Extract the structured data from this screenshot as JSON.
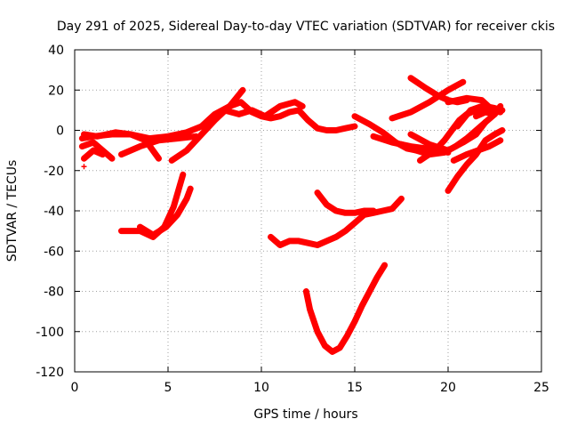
{
  "chart_data": {
    "type": "line",
    "title": "Day 291 of 2025, Sidereal Day-to-day VTEC variation (SDTVAR) for receiver ckis",
    "xlabel": "GPS time / hours",
    "ylabel": "SDTVAR / TECUs",
    "xlim": [
      0,
      25
    ],
    "ylim": [
      -120,
      40
    ],
    "xticks": [
      0,
      5,
      10,
      15,
      20,
      25
    ],
    "yticks": [
      -120,
      -100,
      -80,
      -60,
      -40,
      -20,
      0,
      20,
      40
    ],
    "grid": true,
    "legend": "none",
    "color": "#ff0000",
    "series": [
      {
        "x": [
          0.4,
          1.0,
          2.0,
          3.0,
          4.0,
          5.0,
          6.0,
          6.8,
          7.5,
          8.3,
          9.0
        ],
        "y": [
          -4,
          -3,
          -2,
          -2,
          -4,
          -3,
          -1,
          2,
          8,
          12,
          20
        ]
      },
      {
        "x": [
          0.5,
          1.2,
          2.2,
          3.0,
          3.8,
          4.5
        ],
        "y": [
          -2,
          -3,
          -1,
          -2,
          -5,
          -14
        ]
      },
      {
        "x": [
          0.4,
          1.0,
          1.5,
          2.0
        ],
        "y": [
          -8,
          -6,
          -10,
          -14
        ]
      },
      {
        "x": [
          0.5,
          1.0,
          1.5
        ],
        "y": [
          -14,
          -10,
          -12
        ]
      },
      {
        "x": [
          2.5,
          3.5,
          4.5,
          5.5,
          6.5
        ],
        "y": [
          -12,
          -8,
          -5,
          -4,
          -3
        ]
      },
      {
        "x": [
          5.2,
          6.0,
          6.8,
          7.5,
          8.3,
          8.9,
          9.5,
          10.0,
          10.5,
          11.0,
          11.5,
          12.0,
          12.5,
          13.0,
          13.5,
          14.0,
          14.5,
          15.0
        ],
        "y": [
          -15,
          -10,
          -2,
          5,
          12,
          14,
          9,
          7,
          6,
          7,
          9,
          10,
          5,
          1,
          0,
          0,
          1,
          2
        ]
      },
      {
        "x": [
          8.0,
          8.8,
          9.5,
          10.2,
          11.0,
          11.8,
          12.2
        ],
        "y": [
          10,
          8,
          10,
          7,
          12,
          14,
          12
        ]
      },
      {
        "x": [
          2.5,
          3.5,
          4.2,
          4.8,
          5.3,
          5.8
        ],
        "y": [
          -50,
          -50,
          -53,
          -48,
          -38,
          -22
        ]
      },
      {
        "x": [
          3.5,
          4.2,
          4.9,
          5.5,
          6.0,
          6.2
        ],
        "y": [
          -48,
          -52,
          -48,
          -42,
          -34,
          -29
        ]
      },
      {
        "x": [
          10.5,
          11.0,
          11.5,
          12.0,
          12.5,
          13.0,
          13.5,
          14.0,
          14.5,
          15.0,
          15.5,
          16.0,
          16.5,
          17.0,
          17.5
        ],
        "y": [
          -53,
          -57,
          -55,
          -55,
          -56,
          -57,
          -55,
          -53,
          -50,
          -46,
          -42,
          -41,
          -40,
          -39,
          -34
        ]
      },
      {
        "x": [
          13.0,
          13.5,
          14.0,
          14.5,
          15.0,
          15.5,
          16.0
        ],
        "y": [
          -31,
          -37,
          -40,
          -41,
          -41,
          -40,
          -40
        ]
      },
      {
        "x": [
          12.4,
          12.6,
          13.0,
          13.4,
          13.8,
          14.2,
          14.6,
          15.0,
          15.4,
          15.8,
          16.2,
          16.6
        ],
        "y": [
          -80,
          -89,
          -100,
          -107,
          -110,
          -108,
          -102,
          -95,
          -87,
          -80,
          -73,
          -67
        ]
      },
      {
        "x": [
          15.0,
          15.8,
          16.5,
          17.2,
          17.8,
          18.3
        ],
        "y": [
          7,
          3,
          -1,
          -6,
          -9,
          -10
        ]
      },
      {
        "x": [
          16.0,
          17.0,
          18.0,
          18.8,
          19.5,
          20.0
        ],
        "y": [
          -3,
          -6,
          -8,
          -9,
          -10,
          -11
        ]
      },
      {
        "x": [
          18.0,
          19.0,
          20.0,
          20.8,
          21.5,
          22.0
        ],
        "y": [
          -2,
          -7,
          -10,
          -6,
          -2,
          4
        ]
      },
      {
        "x": [
          17.5,
          18.3,
          19.0,
          19.8,
          20.4,
          21.0,
          21.5,
          22.0,
          22.5
        ],
        "y": [
          -7,
          -10,
          -12,
          -11,
          -8,
          -4,
          0,
          4,
          8
        ]
      },
      {
        "x": [
          18.5,
          19.3,
          19.8,
          20.2,
          20.6,
          21.0,
          21.5,
          22.0,
          22.5,
          22.9
        ],
        "y": [
          -15,
          -10,
          -5,
          0,
          5,
          8,
          10,
          12,
          11,
          10
        ]
      },
      {
        "x": [
          18.0,
          18.8,
          19.5,
          20.0,
          20.5,
          21.0
        ],
        "y": [
          26,
          21,
          17,
          15,
          14,
          15
        ]
      },
      {
        "x": [
          17.0,
          18.0,
          19.0,
          20.0,
          20.8
        ],
        "y": [
          6,
          9,
          14,
          20,
          24
        ]
      },
      {
        "x": [
          20.0,
          21.0,
          21.8,
          22.5
        ],
        "y": [
          14,
          16,
          15,
          9
        ]
      },
      {
        "x": [
          20.5,
          21.2,
          21.8,
          22.3,
          22.8
        ],
        "y": [
          2,
          10,
          12,
          10,
          9
        ]
      },
      {
        "x": [
          21.5,
          22.0,
          22.5,
          22.8
        ],
        "y": [
          7,
          9,
          8,
          12
        ]
      },
      {
        "x": [
          20.0,
          20.5,
          21.0,
          21.5,
          22.0,
          22.5,
          22.9
        ],
        "y": [
          -30,
          -23,
          -17,
          -12,
          -5,
          -2,
          0
        ]
      },
      {
        "x": [
          20.3,
          21.0,
          21.6,
          22.2,
          22.8
        ],
        "y": [
          -15,
          -12,
          -10,
          -8,
          -5
        ]
      },
      {
        "x": [
          0.5
        ],
        "y": [
          -18
        ]
      }
    ]
  }
}
